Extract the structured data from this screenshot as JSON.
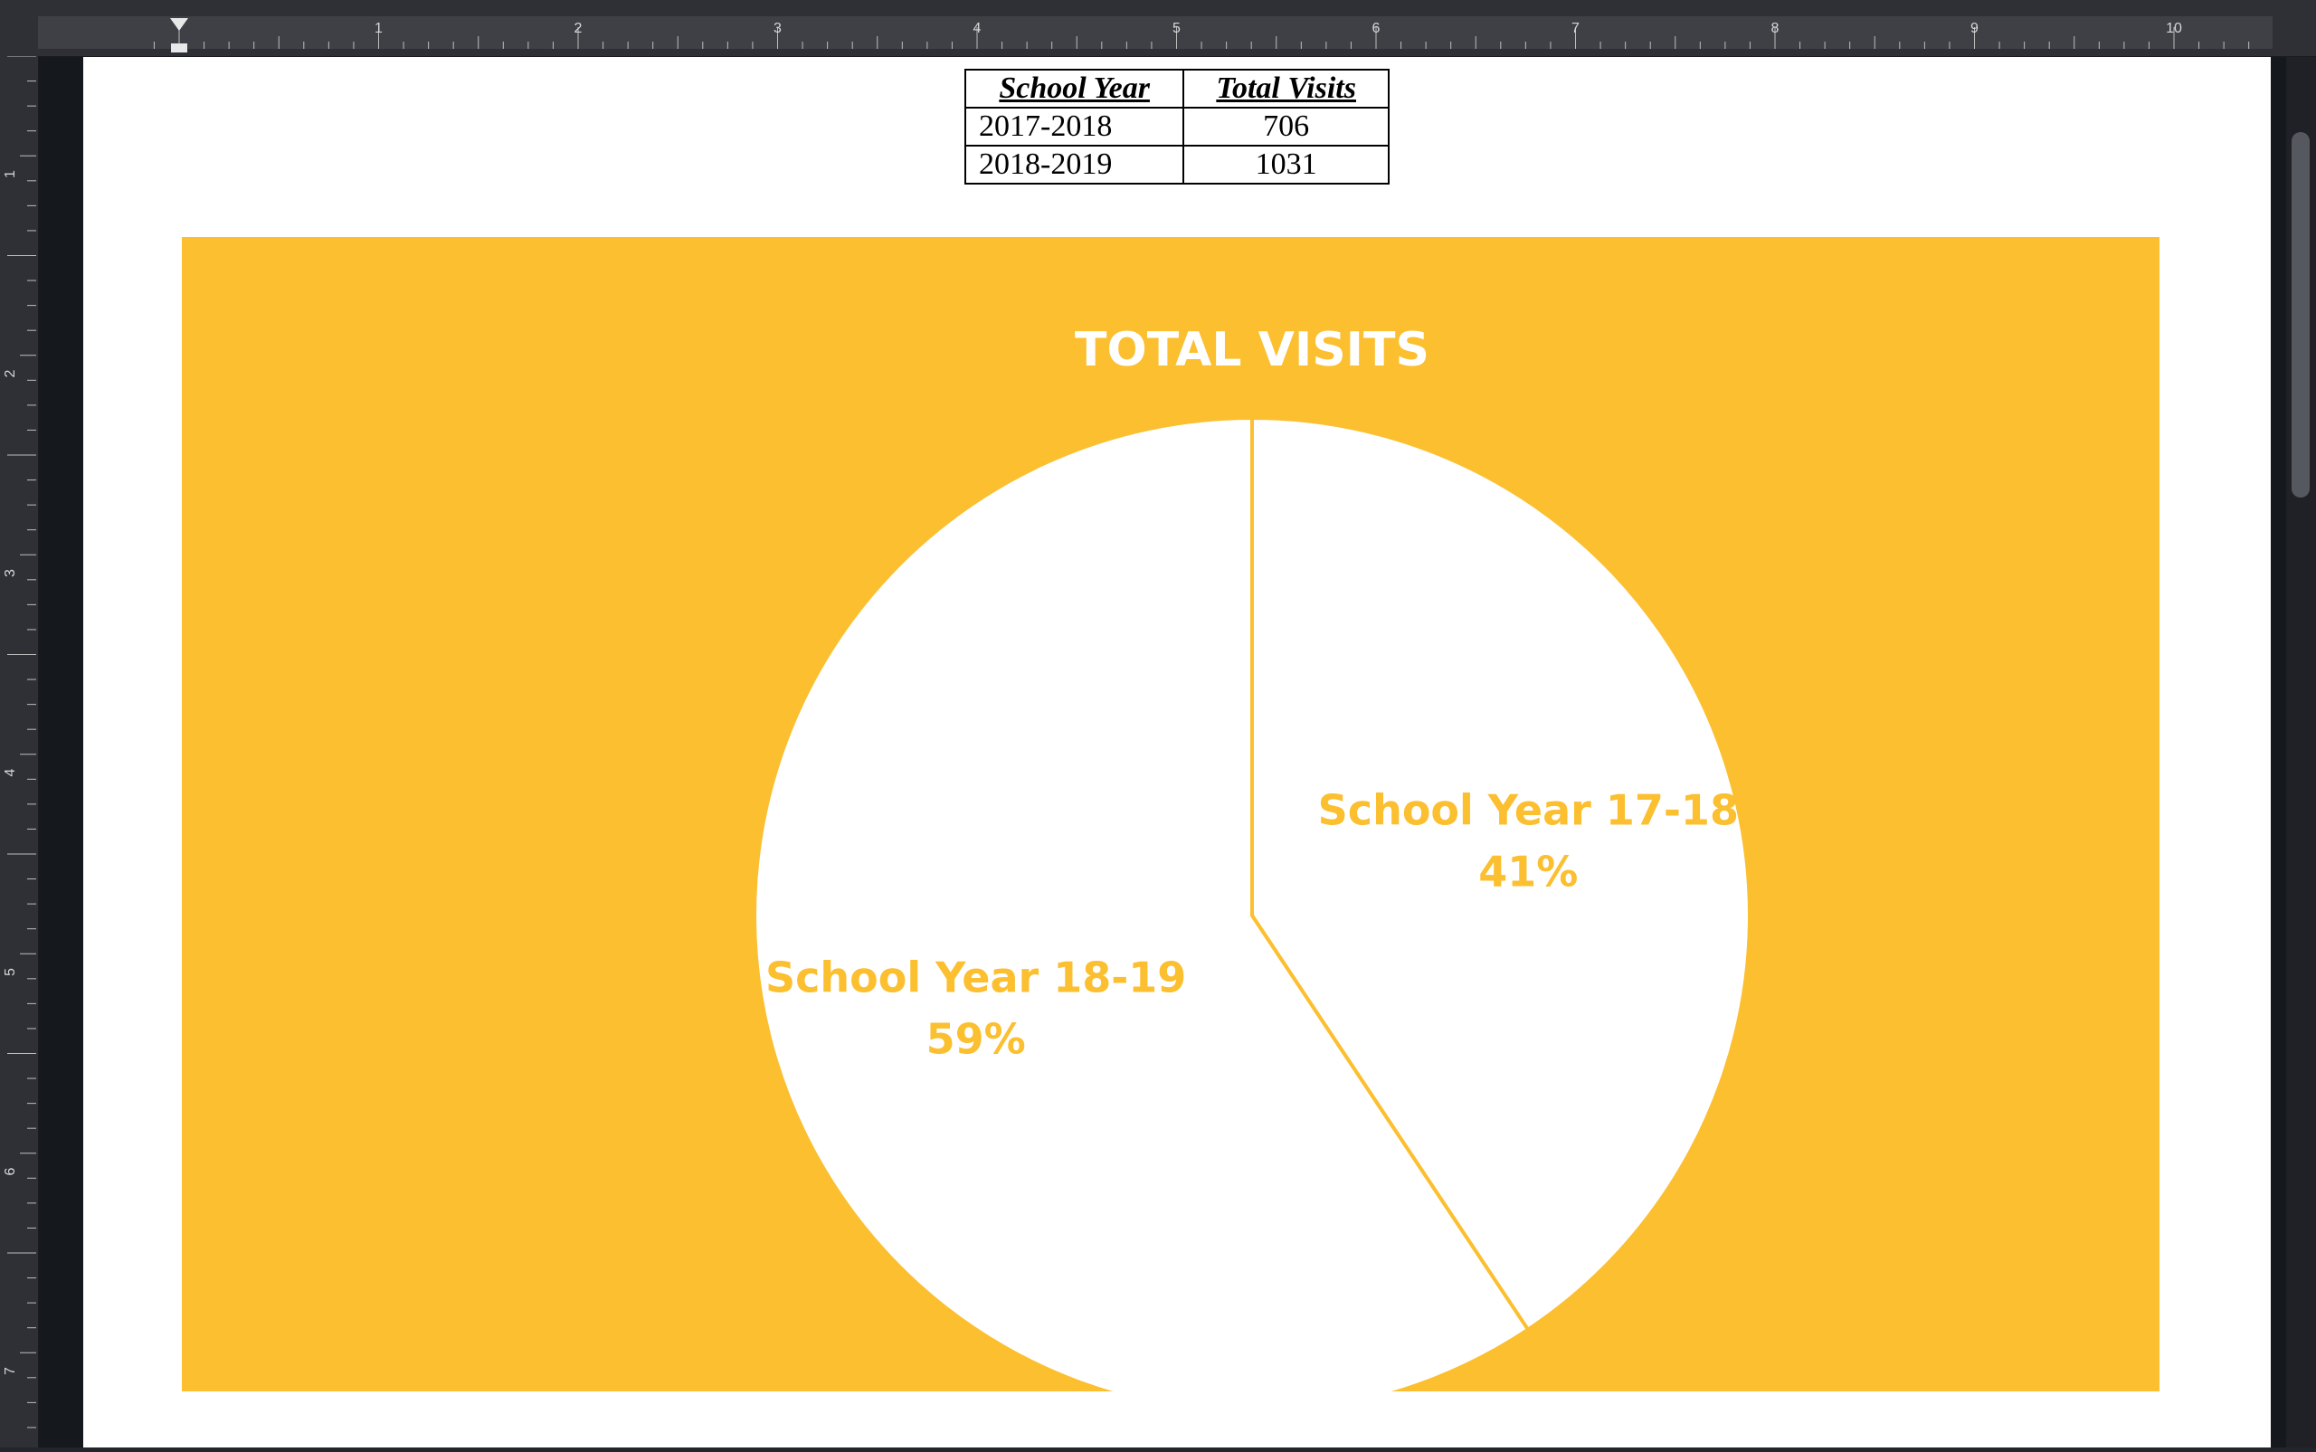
{
  "ruler": {
    "top_numbers": [
      "1",
      "2",
      "3",
      "4",
      "5",
      "6",
      "7",
      "8",
      "9",
      "10"
    ],
    "left_numbers": [
      "1",
      "2",
      "3",
      "4",
      "5",
      "6",
      "7"
    ]
  },
  "table": {
    "headers": [
      "School Year",
      "Total Visits"
    ],
    "rows": [
      {
        "year": "2017-2018",
        "visits": "706"
      },
      {
        "year": "2018-2019",
        "visits": "1031"
      }
    ]
  },
  "colors": {
    "chart_background": "#fbbf2f",
    "slice_fill": "#ffffff",
    "label_color": "#fbbf2f"
  },
  "chart_data": {
    "type": "pie",
    "title": "TOTAL VISITS",
    "categories": [
      "School Year 17-18",
      "School Year 18-19"
    ],
    "values": [
      706,
      1031
    ],
    "percent_labels": [
      "41%",
      "59%"
    ],
    "start_angle": "top, clockwise",
    "legend": "none"
  }
}
